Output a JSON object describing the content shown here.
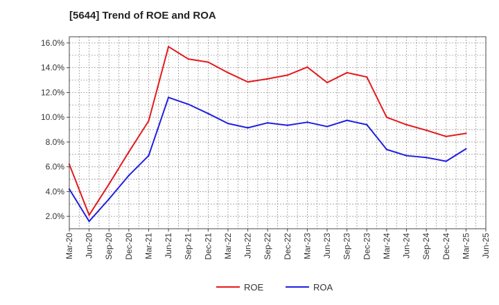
{
  "chart_data": {
    "type": "line",
    "title": "[5644]  Trend of ROE and ROA",
    "xlabel": "",
    "ylabel": "",
    "categories": [
      "Mar-20",
      "Jun-20",
      "Sep-20",
      "Dec-20",
      "Mar-21",
      "Jun-21",
      "Sep-21",
      "Dec-21",
      "Mar-22",
      "Jun-22",
      "Sep-22",
      "Dec-22",
      "Mar-23",
      "Jun-23",
      "Sep-23",
      "Dec-23",
      "Mar-24",
      "Jun-24",
      "Sep-24",
      "Dec-24",
      "Mar-25",
      "Jun-25"
    ],
    "y_ticks": [
      "2.0%",
      "4.0%",
      "6.0%",
      "8.0%",
      "10.0%",
      "12.0%",
      "14.0%",
      "16.0%"
    ],
    "ylim": [
      1.0,
      16.5
    ],
    "grid": true,
    "legend_position": "bottom-center",
    "series": [
      {
        "name": "ROE",
        "color": "#e31a1c",
        "values": [
          6.2,
          2.1,
          4.6,
          7.2,
          9.7,
          15.7,
          14.7,
          14.45,
          13.6,
          12.85,
          13.1,
          13.4,
          14.05,
          12.8,
          13.6,
          13.25,
          10.0,
          9.4,
          8.95,
          8.45,
          8.7,
          null
        ]
      },
      {
        "name": "ROA",
        "color": "#1f1fe0",
        "values": [
          4.2,
          1.6,
          3.4,
          5.3,
          6.9,
          11.6,
          11.05,
          10.3,
          9.5,
          9.15,
          9.55,
          9.35,
          9.6,
          9.25,
          9.75,
          9.4,
          7.4,
          6.9,
          6.75,
          6.45,
          7.45,
          null
        ]
      }
    ]
  }
}
